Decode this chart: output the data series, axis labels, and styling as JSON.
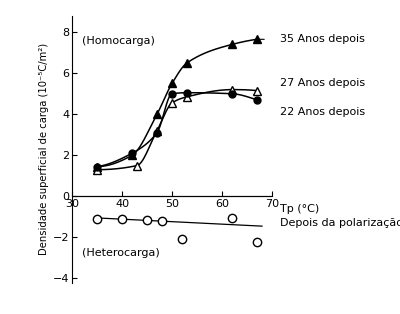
{
  "series_35": {
    "x": [
      35,
      42,
      47,
      50,
      53,
      62,
      67
    ],
    "y": [
      1.45,
      2.0,
      4.0,
      5.5,
      6.5,
      7.4,
      7.65
    ],
    "label": "35 Anos depois",
    "marker": "^",
    "filled": true
  },
  "series_27": {
    "x": [
      35,
      43,
      47,
      50,
      53,
      62,
      67
    ],
    "y": [
      1.3,
      1.5,
      3.2,
      4.55,
      4.85,
      5.2,
      5.15
    ],
    "label": "27 Anos depois",
    "marker": "^",
    "filled": false
  },
  "series_22": {
    "x": [
      35,
      42,
      47,
      50,
      53,
      62,
      67
    ],
    "y": [
      1.45,
      2.1,
      3.1,
      5.0,
      5.05,
      5.0,
      4.7
    ],
    "label": "22 Anos depois",
    "marker": "o",
    "filled": true
  },
  "series_pol": {
    "x": [
      35,
      40,
      45,
      48,
      52,
      62,
      67
    ],
    "y": [
      -1.1,
      -1.1,
      -1.15,
      -1.2,
      -2.1,
      -1.05,
      -2.2
    ],
    "label": "Depois da polarização",
    "marker": "o",
    "line_x": [
      35,
      68
    ],
    "line_y": [
      -1.05,
      -1.45
    ]
  },
  "xlabel": "Tp (°C)",
  "ylabel": "Densidade superficial de carga (10⁻⁵C/m²)",
  "homocarga_label": "(Homocarga)",
  "heterocarga_label": "(Heterocarga)",
  "xlim": [
    30,
    70
  ],
  "ylim": [
    -4.2,
    8.8
  ],
  "xticks": [
    30,
    40,
    50,
    60,
    70
  ],
  "yticks": [
    -4,
    -2,
    0,
    2,
    4,
    6,
    8
  ],
  "background_color": "#ffffff"
}
